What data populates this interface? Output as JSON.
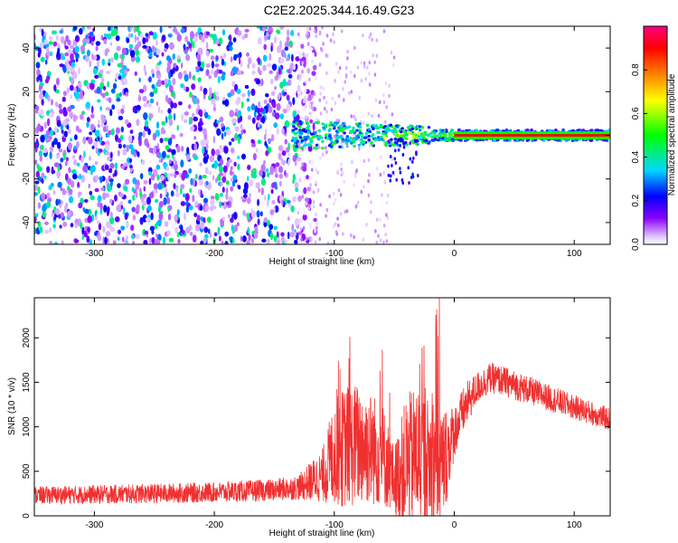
{
  "title": "C2E2.2025.344.16.49.G23",
  "chart_data": [
    {
      "type": "heatmap",
      "title": "C2E2.2025.344.16.49.G23",
      "xlabel": "Height of straight line (km)",
      "ylabel": "Frequency (Hz)",
      "xlim": [
        -350,
        130
      ],
      "ylim": [
        -50,
        50
      ],
      "x_ticks": [
        -300,
        -200,
        -100,
        0,
        100
      ],
      "y_ticks": [
        -40,
        -20,
        0,
        20,
        40
      ],
      "colorbar": {
        "label": "Normalized spectral amplitude",
        "range": [
          0,
          1
        ],
        "ticks": [
          "0.0",
          "0.2",
          "0.4",
          "0.6",
          "0.8"
        ],
        "colormap": [
          "#ffffff",
          "#8b00ff",
          "#0000ff",
          "#00e5ff",
          "#00ff00",
          "#ffff00",
          "#ff8000",
          "#ff0000",
          "#ff0080"
        ]
      },
      "features": {
        "noise_region_x": [
          -350,
          -130
        ],
        "noise_amplitude": 0.35,
        "signal_start_x": -135,
        "signal_center_frequency": 0,
        "signal_band_halfwidth_hz": 5,
        "strong_tone_start_x": 0,
        "strong_tone_amplitude": 0.9
      }
    },
    {
      "type": "line",
      "xlabel": "Height of straight line (km)",
      "ylabel": "SNR (10 * v/v)",
      "xlim": [
        -350,
        130
      ],
      "ylim": [
        0,
        2450
      ],
      "x_ticks": [
        -300,
        -200,
        -100,
        0,
        100
      ],
      "y_ticks": [
        0,
        500,
        1000,
        1500,
        2000
      ],
      "color": "#f03030",
      "envelope": {
        "x": [
          -350,
          -300,
          -250,
          -200,
          -150,
          -130,
          -110,
          -100,
          -90,
          -80,
          -70,
          -60,
          -50,
          -40,
          -30,
          -20,
          -15,
          -10,
          0,
          10,
          20,
          30,
          40,
          60,
          80,
          100,
          130
        ],
        "mean": [
          230,
          240,
          250,
          265,
          290,
          320,
          450,
          700,
          780,
          800,
          760,
          700,
          400,
          600,
          700,
          600,
          650,
          550,
          950,
          1250,
          1450,
          1550,
          1520,
          1420,
          1320,
          1220,
          1080
        ],
        "spread": [
          100,
          105,
          110,
          115,
          125,
          140,
          300,
          600,
          700,
          700,
          650,
          600,
          380,
          750,
          800,
          700,
          850,
          700,
          300,
          250,
          180,
          170,
          170,
          160,
          150,
          140,
          130
        ]
      }
    }
  ]
}
